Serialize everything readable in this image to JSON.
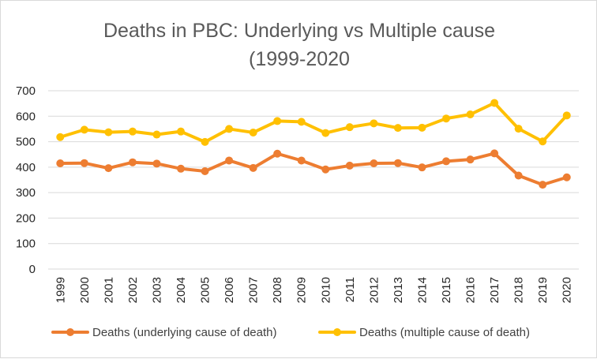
{
  "chart_data": {
    "type": "line",
    "title_lines": [
      "Deaths in PBC: Underlying vs Multiple cause",
      "(1999-2020"
    ],
    "xlabel": "",
    "ylabel": "",
    "ylim": [
      0,
      700
    ],
    "y_ticks": [
      "0",
      "100",
      "200",
      "300",
      "400",
      "500",
      "600",
      "700"
    ],
    "grid": true,
    "legend_position": "bottom",
    "x": [
      "1999",
      "2000",
      "2001",
      "2002",
      "2003",
      "2004",
      "2005",
      "2006",
      "2007",
      "2008",
      "2009",
      "2010",
      "2011",
      "2012",
      "2013",
      "2014",
      "2015",
      "2016",
      "2017",
      "2018",
      "2019",
      "2020"
    ],
    "series": [
      {
        "name": "Deaths (underlying cause of death)",
        "color": "#ed7d31",
        "values": [
          415,
          416,
          396,
          419,
          414,
          394,
          384,
          426,
          397,
          453,
          426,
          391,
          406,
          415,
          416,
          399,
          423,
          430,
          454,
          367,
          331,
          360
        ]
      },
      {
        "name": "Deaths (multiple cause of death)",
        "color": "#ffc000",
        "values": [
          518,
          547,
          537,
          540,
          528,
          540,
          499,
          550,
          536,
          581,
          578,
          534,
          557,
          572,
          554,
          555,
          591,
          607,
          652,
          551,
          501,
          603
        ]
      }
    ]
  }
}
